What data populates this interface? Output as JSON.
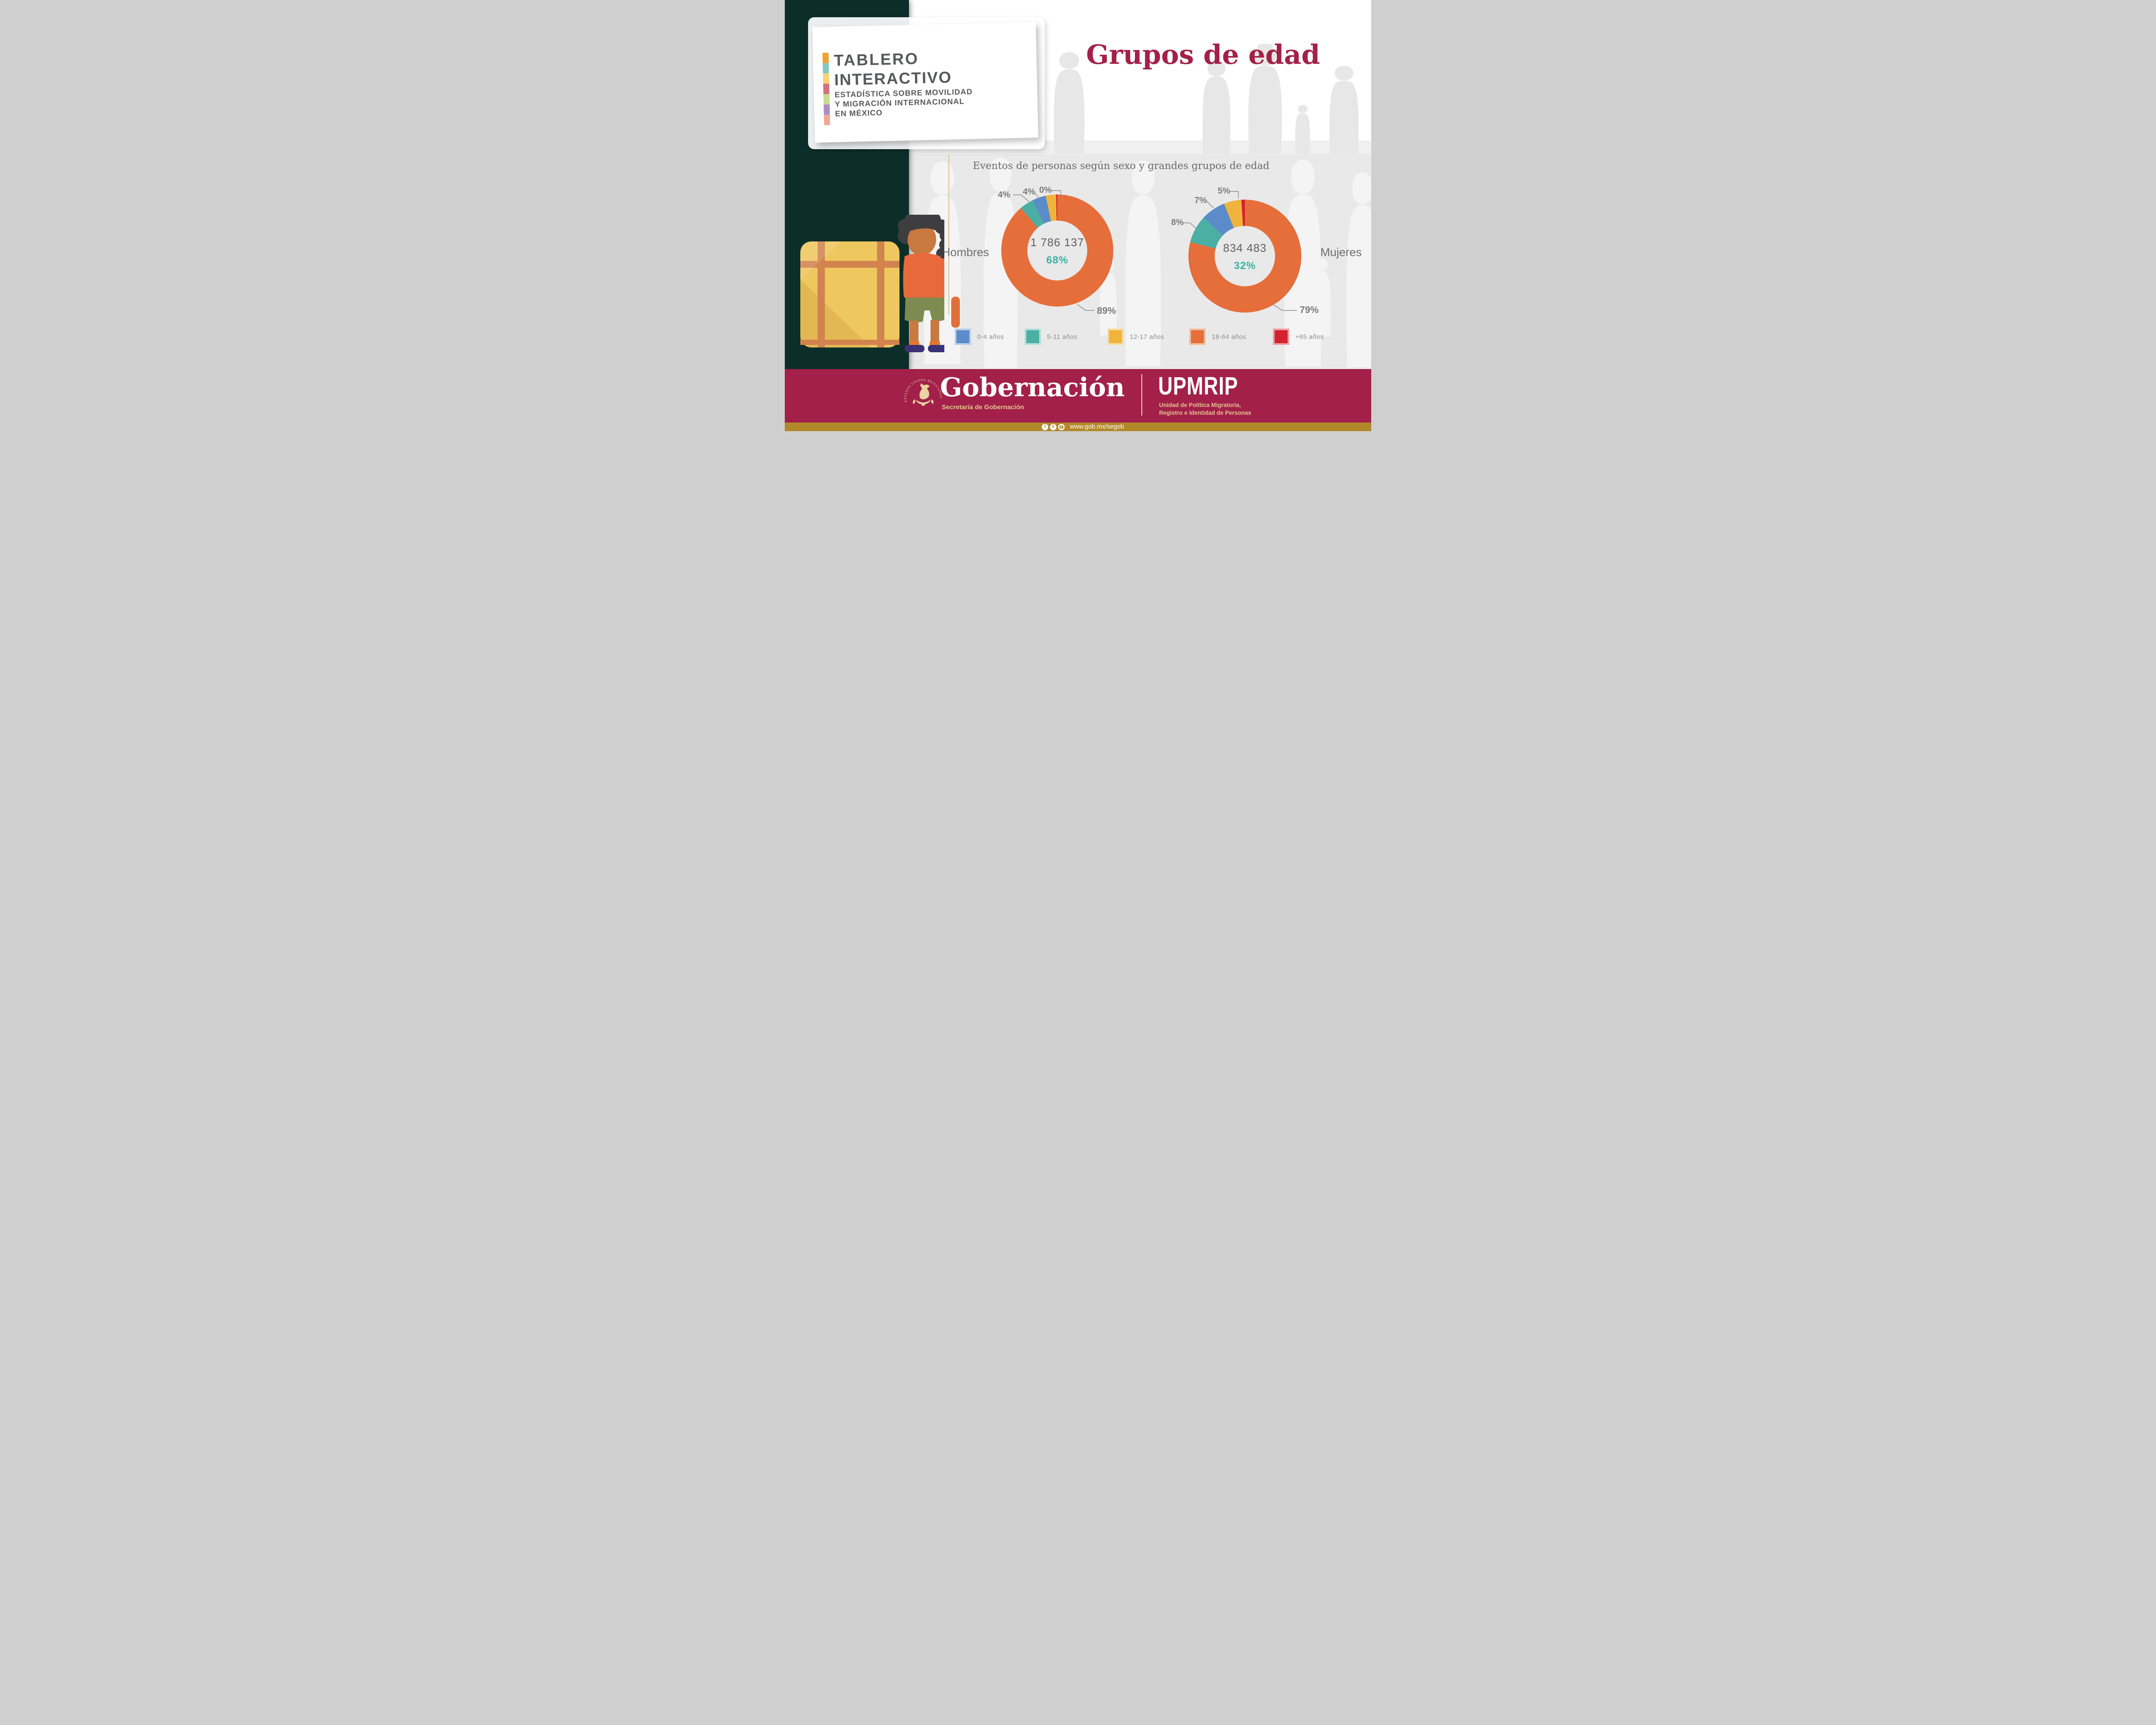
{
  "brand": {
    "maroon": "#A22049",
    "gold_bar": "#B2892A",
    "gold_text": "#E3C48F",
    "dark_green": "#0C2E28",
    "panel_gray": "#E9E9E9",
    "title_color": "#A32148",
    "share_teal": "#3BB0A2"
  },
  "logo_card": {
    "strip_colors": [
      "#F0A22B",
      "#86C8BD",
      "#FBD178",
      "#D37080",
      "#C6DB8E",
      "#AC8EC4",
      "#F2A795"
    ],
    "title_line1": "TABLERO",
    "title_line2": "INTERACTIVO",
    "subtitle_line1": "ESTADÍSTICA SOBRE MOVILIDAD",
    "subtitle_line2": "Y MIGRACIÓN INTERNACIONAL",
    "subtitle_line3": "EN MÉXICO"
  },
  "page_title": "Grupos de edad",
  "chart_data": {
    "type": "pie",
    "subtype": "donut",
    "title": "Eventos de personas según sexo y grandes grupos de edad",
    "categories": [
      "0-4 años",
      "5-11 años",
      "12-17 años",
      "18-64 años",
      "+65 años"
    ],
    "colors": {
      "0-4 años": "#5B8CC9",
      "5-11 años": "#4BAFA3",
      "12-17 años": "#F0B43C",
      "18-64 años": "#E56E3B",
      "+65 años": "#D2232E"
    },
    "legend_tints": {
      "0-4 años": "#BCCDE8",
      "5-11 años": "#B7DFD9",
      "12-17 años": "#F8DC9F",
      "18-64 años": "#F3BD9B",
      "+65 años": "#EDA0A5"
    },
    "slice_order": [
      "18-64 años",
      "5-11 años",
      "0-4 años",
      "12-17 años",
      "+65 años"
    ],
    "legend_position": "bottom",
    "series": [
      {
        "name": "Hombres",
        "total": "1 786 137",
        "share": "68%",
        "values_pct": {
          "0-4 años": 4,
          "5-11 años": 4,
          "12-17 años": 3,
          "18-64 años": 89,
          "+65 años": 0
        },
        "labels": [
          {
            "text": "4%",
            "category": "5-11 años"
          },
          {
            "text": "4%",
            "category": "0-4 años"
          },
          {
            "text": "0%",
            "category": "+65 años"
          },
          {
            "text": "89%",
            "category": "18-64 años"
          }
        ]
      },
      {
        "name": "Mujeres",
        "total": "834 483",
        "share": "32%",
        "values_pct": {
          "0-4 años": 7,
          "5-11 años": 8,
          "12-17 años": 5,
          "18-64 años": 79,
          "+65 años": 1
        },
        "labels": [
          {
            "text": "8%",
            "category": "5-11 años"
          },
          {
            "text": "7%",
            "category": "0-4 años"
          },
          {
            "text": "5%",
            "category": "12-17 años"
          },
          {
            "text": "79%",
            "category": "18-64 años"
          }
        ]
      }
    ]
  },
  "footer": {
    "seal_text": "ESTADOS UNIDOS MEXICANOS",
    "brand": "Gobernación",
    "brand_sub": "Secretaría de Gobernación",
    "unit": "UPMRIP",
    "unit_sub1": "Unidad de Política Migratoria,",
    "unit_sub2": "Registro e Identidad de Personas",
    "url": "www.gob.mx/segob"
  }
}
